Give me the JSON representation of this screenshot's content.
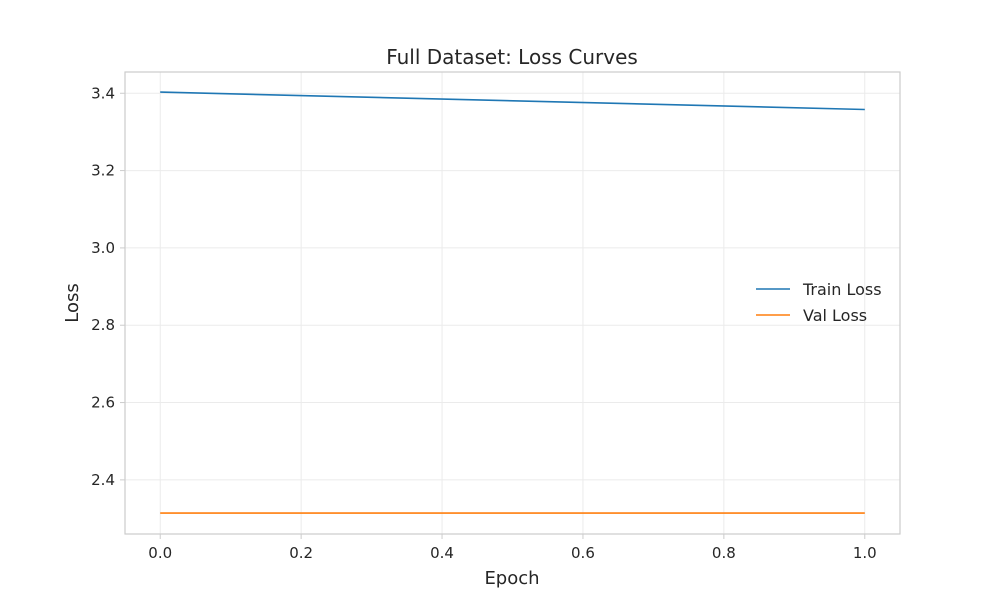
{
  "chart_data": {
    "type": "line",
    "title": "Full Dataset: Loss Curves",
    "xlabel": "Epoch",
    "ylabel": "Loss",
    "xlim": [
      -0.05,
      1.05
    ],
    "ylim": [
      2.26,
      3.455
    ],
    "x_ticks": [
      0.0,
      0.2,
      0.4,
      0.6,
      0.8,
      1.0
    ],
    "x_tick_labels": [
      "0.0",
      "0.2",
      "0.4",
      "0.6",
      "0.8",
      "1.0"
    ],
    "y_ticks": [
      2.4,
      2.6,
      2.8,
      3.0,
      3.2,
      3.4
    ],
    "y_tick_labels": [
      "2.4",
      "2.6",
      "2.8",
      "3.0",
      "3.2",
      "3.4"
    ],
    "grid": true,
    "legend_position": "center-right",
    "series": [
      {
        "name": "Train Loss",
        "color": "#1f77b4",
        "x": [
          0,
          1
        ],
        "y": [
          3.403,
          3.358
        ]
      },
      {
        "name": "Val Loss",
        "color": "#ff7f0e",
        "x": [
          0,
          1
        ],
        "y": [
          2.314,
          2.314
        ]
      }
    ]
  }
}
